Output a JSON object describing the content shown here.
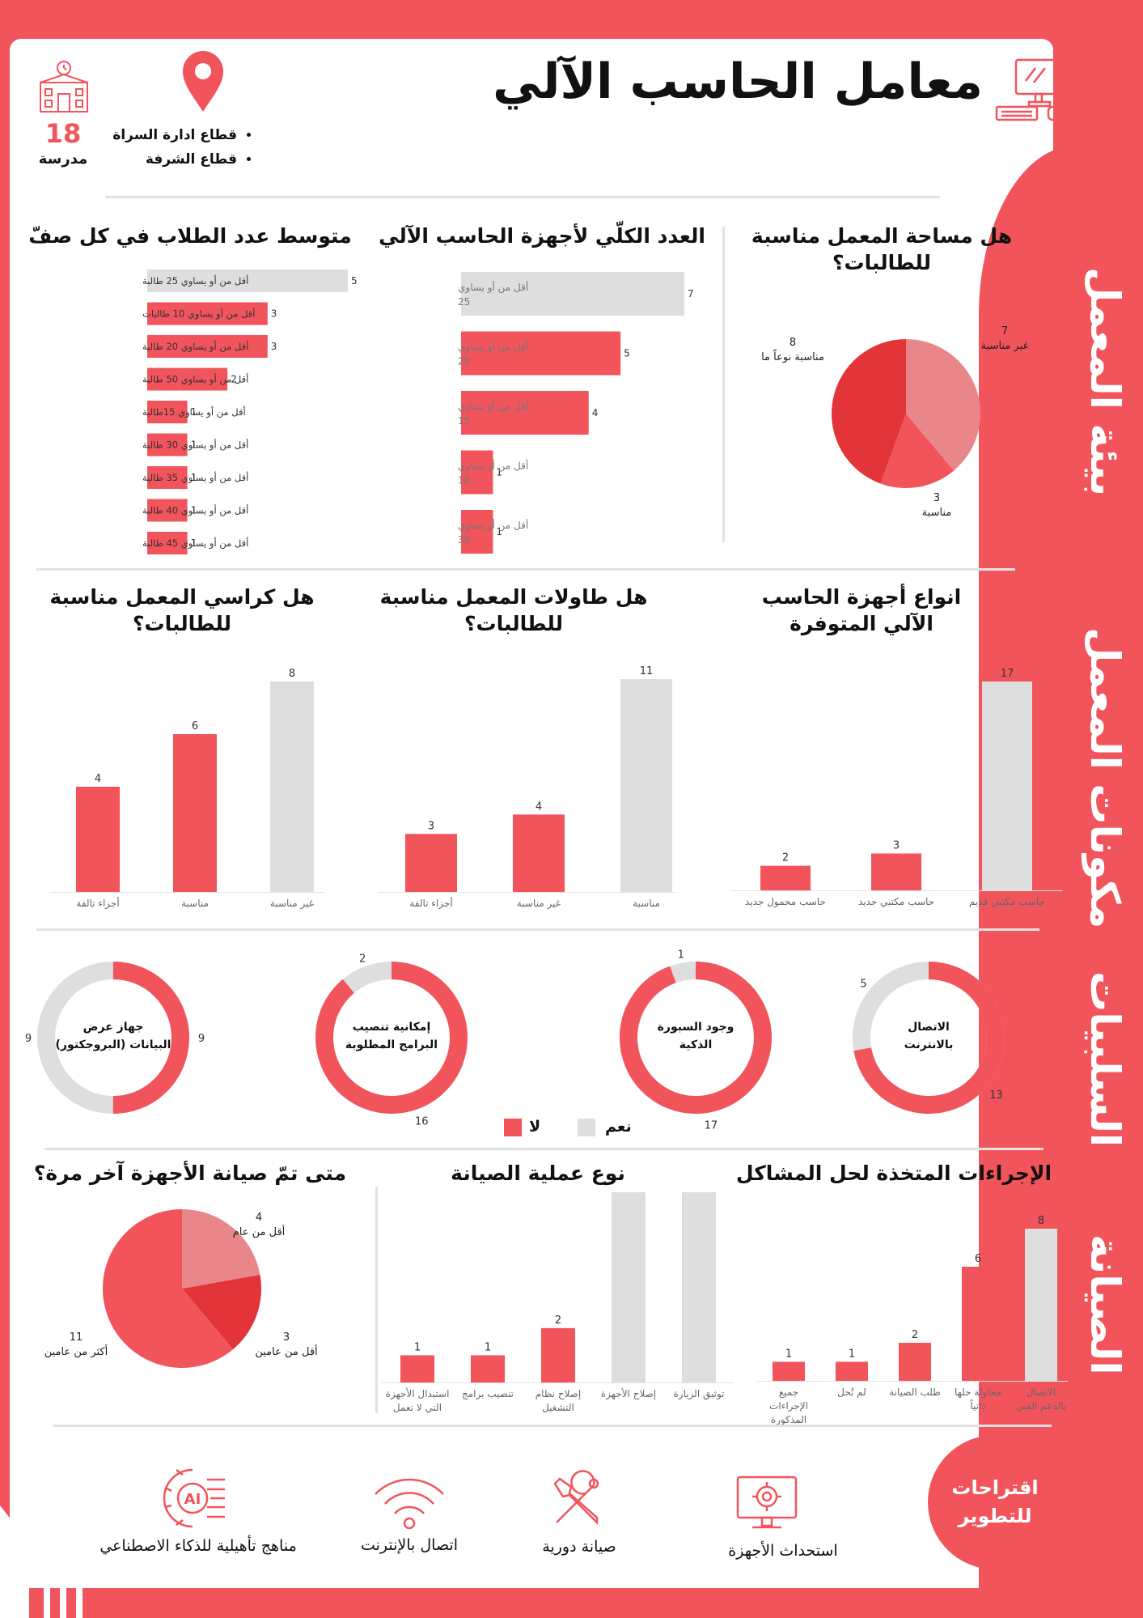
{
  "header": {
    "title": "معامل الحاسب الآلي",
    "bullets": [
      "قطاع ادارة السراة",
      "قطاع الشرفة"
    ],
    "schools_count": "18",
    "schools_label": "مدرسة"
  },
  "sidebar": [
    "بيئة المعمل",
    "مكونات المعمل",
    "السلبيات",
    "الصيانة"
  ],
  "colors": {
    "accent": "#f2545b",
    "gray": "#dedede",
    "light_red": "#e8868a",
    "dark_red": "#e3343a"
  },
  "sections": {
    "students": {
      "title": "متوسط عدد الطلاب في كل صفّ"
    },
    "computers": {
      "title": "العدد الكلّي لأجهزة الحاسب الآلي"
    },
    "space": {
      "title": "هل مساحة المعمل مناسبة للطالبات؟"
    },
    "types": {
      "title": "انواع أجهزة الحاسب الآلي المتوفرة"
    },
    "tables": {
      "title": "هل طاولات المعمل مناسبة للطالبات؟"
    },
    "chairs": {
      "title": "هل كراسي المعمل مناسبة للطالبات؟"
    },
    "actions": {
      "title": "الإجراءات المتخذة لحل المشاكل"
    },
    "maint_type": {
      "title": "نوع عملية الصيانة"
    },
    "last_maint": {
      "title": "متى تمّ صيانة الأجهزة آخر مرة؟"
    }
  },
  "legend": {
    "no": "لا",
    "yes": "نعم"
  },
  "suggestions": {
    "title": "اقتراحات للتطوير",
    "items": [
      "استحداث الأجهزة",
      "صيانة دورية",
      "اتصال بالإنترنت",
      "مناهج تأهيلية للذكاء الاصطناعي"
    ]
  },
  "chart_data": [
    {
      "id": "students",
      "type": "bar",
      "orientation": "horizontal",
      "categories": [
        "أقل من أو يساوي 25 طالبة",
        "أقل من أو يساوي 10 طالبات",
        "أقل من أو يساوي 20 طالبة",
        "أقل من أو يساوي 50 طالبة",
        "أقل من أو يساوي 15طالبة",
        "أقل من أو يساوي 30 طالبة",
        "أقل من أو يساوي 35 طالبة",
        "أقل من أو يساوي 40 طالبة",
        "أقل من أو يساوي 45 طالبة"
      ],
      "values": [
        5,
        3,
        3,
        2,
        1,
        1,
        1,
        1,
        1
      ],
      "colors": [
        "gray",
        "red",
        "red",
        "red",
        "red",
        "red",
        "red",
        "red",
        "red"
      ]
    },
    {
      "id": "computers",
      "type": "bar",
      "orientation": "horizontal",
      "categories": [
        [
          "أقل من أو يساوي",
          "25"
        ],
        [
          "أقل من أو يساوي",
          "20"
        ],
        [
          "أقل من أو يساوي",
          "15"
        ],
        [
          "أقل من أو يساوي",
          "10"
        ],
        [
          "أقل من أو يساوي",
          "30"
        ]
      ],
      "values": [
        7,
        5,
        4,
        1,
        1
      ],
      "colors": [
        "gray",
        "red",
        "red",
        "red",
        "red"
      ]
    },
    {
      "id": "space",
      "type": "pie",
      "slices": [
        {
          "label": "غير مناسبة",
          "value": 7,
          "color": "light_red"
        },
        {
          "label": "مناسبة",
          "value": 3,
          "color": "red"
        },
        {
          "label": "مناسبة نوعاً ما",
          "value": 8,
          "color": "dark_red"
        }
      ]
    },
    {
      "id": "types",
      "type": "bar",
      "categories": [
        "حاسب محمول جديد",
        "حاسب مكتبي جديد",
        "حاسب مكتبي قديم"
      ],
      "values": [
        2,
        3,
        17
      ],
      "colors": [
        "red",
        "red",
        "gray"
      ]
    },
    {
      "id": "tables",
      "type": "bar",
      "categories": [
        "أجزاء تالفة",
        "غير مناسبة",
        "مناسبة"
      ],
      "values": [
        3,
        4,
        11
      ],
      "colors": [
        "red",
        "red",
        "gray"
      ]
    },
    {
      "id": "chairs",
      "type": "bar",
      "categories": [
        "أجزاء تالفة",
        "مناسبة",
        "غير مناسبة"
      ],
      "values": [
        4,
        6,
        8
      ],
      "colors": [
        "red",
        "red",
        "gray"
      ]
    },
    {
      "id": "projector",
      "type": "donut",
      "label": "جهاز عرض البيانات (البروجكتور)",
      "no": 9,
      "yes": 9
    },
    {
      "id": "programs",
      "type": "donut",
      "label": "إمكانية تنصيب البرامج المطلوبة",
      "no": 16,
      "yes": 2
    },
    {
      "id": "board",
      "type": "donut",
      "label": "وجود السبورة الذكية",
      "no": 17,
      "yes": 1
    },
    {
      "id": "internet",
      "type": "donut",
      "label": "الاتصال بالانترنت",
      "no": 13,
      "yes": 5
    },
    {
      "id": "actions",
      "type": "bar",
      "categories": [
        [
          "جميع",
          "الإجراءات",
          "المذكورة"
        ],
        [
          "لم تُحل"
        ],
        [
          "طلب الصيانة"
        ],
        [
          "محاولة حلها",
          "ذاتياً"
        ],
        [
          "الاتصال",
          "بالدعم الفني"
        ]
      ],
      "values": [
        1,
        1,
        2,
        6,
        8
      ],
      "colors": [
        "red",
        "red",
        "red",
        "red",
        "gray"
      ]
    },
    {
      "id": "maint_type",
      "type": "bar",
      "categories": [
        [
          "استبدال الأجهزة",
          "التي لا تعمل"
        ],
        [
          "تنصيب برامج"
        ],
        [
          "إصلاح نظام",
          "التشغيل"
        ],
        [
          "إصلاح الأجهزة"
        ],
        [
          "توثيق الزيارة"
        ]
      ],
      "values": [
        1,
        1,
        2,
        7,
        7
      ],
      "colors": [
        "red",
        "red",
        "red",
        "gray",
        "gray"
      ]
    },
    {
      "id": "last_maint",
      "type": "pie",
      "slices": [
        {
          "label": "أقل من عام",
          "value": 4,
          "color": "light_red"
        },
        {
          "label": "أقل من عامين",
          "value": 3,
          "color": "dark_red"
        },
        {
          "label": "أكثر من عامين",
          "value": 11,
          "color": "red"
        }
      ]
    }
  ]
}
